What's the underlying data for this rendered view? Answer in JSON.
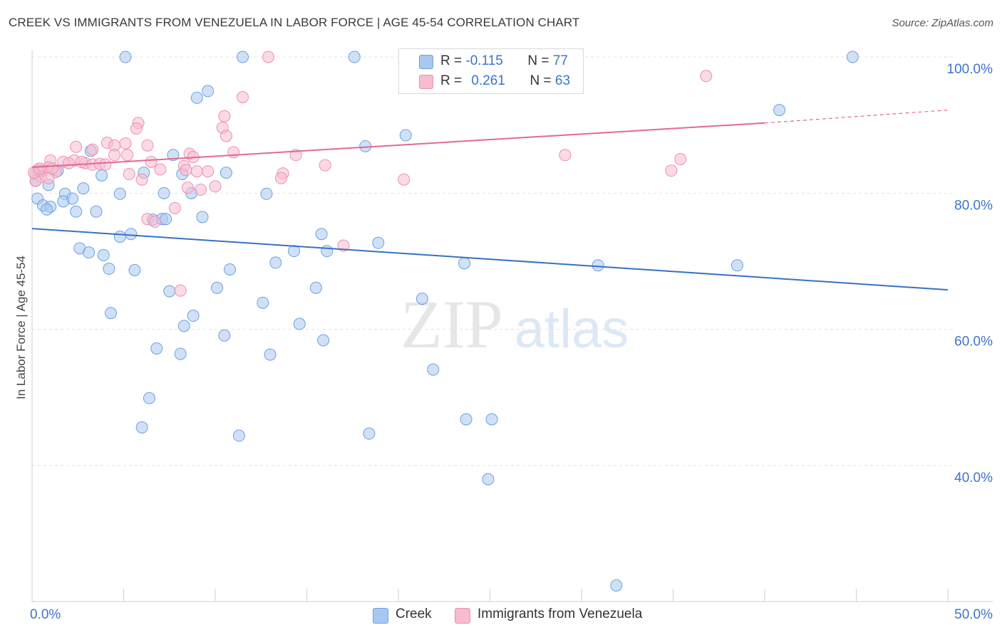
{
  "title": "CREEK VS IMMIGRANTS FROM VENEZUELA IN LABOR FORCE | AGE 45-54 CORRELATION CHART",
  "source": "Source: ZipAtlas.com",
  "watermark": {
    "zip": "ZIP",
    "atlas": "atlas"
  },
  "legend": {
    "rows": [
      {
        "r_label": "R =",
        "r_value": "-0.115",
        "n_label": "N =",
        "n_value": "77"
      },
      {
        "r_label": "R =",
        "r_value": "0.261",
        "n_label": "N =",
        "n_value": "63"
      }
    ]
  },
  "colors": {
    "creek_fill": "#a9c8f0",
    "creek_stroke": "#6f9fde",
    "creek_line": "#3572c6",
    "venez_fill": "#f7bcd0",
    "venez_stroke": "#ec8fb0",
    "venez_line": "#e26893",
    "grid": "#e3e3e3",
    "tick_label": "#3b74c9"
  },
  "chart_data": {
    "type": "scatter",
    "xlabel": "",
    "ylabel": "In Labor Force | Age 45-54",
    "xlim": [
      0,
      50
    ],
    "ylim": [
      20,
      104
    ],
    "x_tick_labels": [
      {
        "value": 0,
        "label": "0.0%"
      },
      {
        "value": 50,
        "label": "50.0%"
      }
    ],
    "y_tick_labels": [
      {
        "value": 100,
        "label": "100.0%"
      },
      {
        "value": 80,
        "label": "80.0%"
      },
      {
        "value": 60,
        "label": "60.0%"
      },
      {
        "value": 40,
        "label": "40.0%"
      }
    ],
    "x_minor_ticks": [
      0,
      5,
      10,
      15,
      20,
      25,
      30,
      35,
      40,
      45,
      50
    ],
    "grid": true,
    "legend_position": "top-center",
    "series": [
      {
        "name": "Creek",
        "r": -0.115,
        "n": 77,
        "trend": {
          "x": [
            0,
            50
          ],
          "y": [
            74.8,
            65.8
          ]
        },
        "points": [
          [
            5.1,
            100
          ],
          [
            11.5,
            100
          ],
          [
            17.6,
            100
          ],
          [
            44.8,
            100
          ],
          [
            9.6,
            95
          ],
          [
            9.0,
            94
          ],
          [
            23.7,
            95.6
          ],
          [
            40.8,
            92.2
          ],
          [
            20.4,
            88.5
          ],
          [
            18.2,
            86.9
          ],
          [
            3.2,
            86.2
          ],
          [
            7.7,
            85.6
          ],
          [
            6.1,
            83
          ],
          [
            8.2,
            82.8
          ],
          [
            10.6,
            83
          ],
          [
            3.8,
            82.6
          ],
          [
            2.8,
            80.7
          ],
          [
            0.2,
            81.8
          ],
          [
            0.3,
            79.2
          ],
          [
            1.8,
            79.9
          ],
          [
            2.2,
            79.2
          ],
          [
            1.7,
            78.8
          ],
          [
            0.6,
            78.2
          ],
          [
            1.0,
            78.0
          ],
          [
            0.8,
            77.6
          ],
          [
            2.4,
            77.3
          ],
          [
            3.5,
            77.3
          ],
          [
            4.8,
            79.9
          ],
          [
            7.2,
            80.0
          ],
          [
            8.7,
            80.0
          ],
          [
            12.8,
            79.9
          ],
          [
            6.6,
            76.1
          ],
          [
            7.1,
            76.2
          ],
          [
            7.3,
            76.2
          ],
          [
            9.3,
            76.5
          ],
          [
            5.4,
            74.0
          ],
          [
            4.8,
            73.6
          ],
          [
            15.8,
            74.0
          ],
          [
            18.9,
            72.7
          ],
          [
            2.6,
            71.9
          ],
          [
            3.1,
            71.3
          ],
          [
            3.9,
            70.9
          ],
          [
            14.3,
            71.5
          ],
          [
            16.1,
            71.5
          ],
          [
            4.2,
            68.9
          ],
          [
            5.6,
            68.7
          ],
          [
            13.3,
            69.8
          ],
          [
            10.8,
            68.8
          ],
          [
            23.6,
            69.7
          ],
          [
            30.9,
            69.4
          ],
          [
            38.5,
            69.4
          ],
          [
            7.5,
            65.6
          ],
          [
            10.1,
            66.1
          ],
          [
            15.5,
            66.1
          ],
          [
            12.6,
            63.9
          ],
          [
            21.3,
            64.5
          ],
          [
            4.3,
            62.4
          ],
          [
            8.8,
            62.0
          ],
          [
            8.3,
            60.5
          ],
          [
            14.6,
            60.8
          ],
          [
            10.5,
            59.1
          ],
          [
            15.9,
            58.4
          ],
          [
            6.8,
            57.2
          ],
          [
            8.1,
            56.4
          ],
          [
            13.0,
            56.3
          ],
          [
            21.9,
            54.1
          ],
          [
            6.4,
            49.9
          ],
          [
            23.7,
            46.8
          ],
          [
            25.1,
            46.8
          ],
          [
            6.0,
            45.6
          ],
          [
            11.3,
            44.4
          ],
          [
            18.4,
            44.7
          ],
          [
            24.9,
            38.0
          ],
          [
            31.9,
            22.4
          ],
          [
            0.4,
            83.3
          ],
          [
            1.4,
            83.3
          ],
          [
            0.9,
            81.2
          ]
        ]
      },
      {
        "name": "Immigrants from Venezuela",
        "r": 0.261,
        "n": 63,
        "trend": {
          "x": [
            40,
            50
          ],
          "y": [
            90.3,
            92.2
          ]
        },
        "trend_dashed": {
          "x": [
            40,
            50
          ],
          "y": [
            90.3,
            92.2
          ]
        },
        "trend_solid": {
          "x": [
            0,
            40
          ],
          "y": [
            83.8,
            90.3
          ]
        },
        "points": [
          [
            12.9,
            100
          ],
          [
            36.8,
            97.2
          ],
          [
            11.5,
            94.1
          ],
          [
            10.5,
            91.3
          ],
          [
            5.8,
            90.3
          ],
          [
            5.7,
            89.5
          ],
          [
            10.4,
            89.6
          ],
          [
            10.6,
            88.4
          ],
          [
            5.1,
            87.3
          ],
          [
            4.1,
            87.4
          ],
          [
            4.5,
            87.0
          ],
          [
            6.3,
            87.0
          ],
          [
            3.3,
            86.4
          ],
          [
            2.4,
            86.8
          ],
          [
            4.5,
            85.6
          ],
          [
            5.2,
            85.6
          ],
          [
            8.6,
            85.8
          ],
          [
            8.8,
            85.3
          ],
          [
            11.0,
            86.0
          ],
          [
            14.4,
            85.6
          ],
          [
            29.1,
            85.6
          ],
          [
            35.4,
            85.0
          ],
          [
            1.0,
            84.8
          ],
          [
            2.3,
            84.8
          ],
          [
            1.7,
            84.6
          ],
          [
            2.0,
            84.4
          ],
          [
            2.9,
            84.4
          ],
          [
            3.3,
            84.2
          ],
          [
            3.7,
            84.3
          ],
          [
            4.0,
            84.2
          ],
          [
            6.5,
            84.6
          ],
          [
            0.9,
            83.8
          ],
          [
            0.3,
            83.4
          ],
          [
            0.6,
            83.3
          ],
          [
            1.3,
            83.1
          ],
          [
            8.3,
            84.0
          ],
          [
            16.0,
            84.1
          ],
          [
            7.0,
            83.5
          ],
          [
            8.4,
            83.4
          ],
          [
            9.0,
            83.2
          ],
          [
            9.6,
            83.2
          ],
          [
            13.7,
            82.9
          ],
          [
            5.3,
            82.8
          ],
          [
            6.0,
            82.0
          ],
          [
            13.6,
            82.2
          ],
          [
            20.3,
            82.0
          ],
          [
            34.9,
            83.3
          ],
          [
            0.2,
            82.8
          ],
          [
            0.5,
            82.4
          ],
          [
            0.9,
            82.2
          ],
          [
            0.2,
            81.8
          ],
          [
            8.5,
            80.8
          ],
          [
            9.2,
            80.5
          ],
          [
            10.0,
            81.0
          ],
          [
            7.8,
            77.8
          ],
          [
            6.3,
            76.2
          ],
          [
            6.7,
            75.8
          ],
          [
            17.0,
            72.3
          ],
          [
            8.1,
            65.7
          ],
          [
            0.1,
            83.0
          ],
          [
            0.4,
            83.6
          ],
          [
            1.1,
            83.6
          ],
          [
            2.7,
            84.6
          ]
        ]
      }
    ]
  },
  "bottom_legend": [
    {
      "label": "Creek"
    },
    {
      "label": "Immigrants from Venezuela"
    }
  ]
}
